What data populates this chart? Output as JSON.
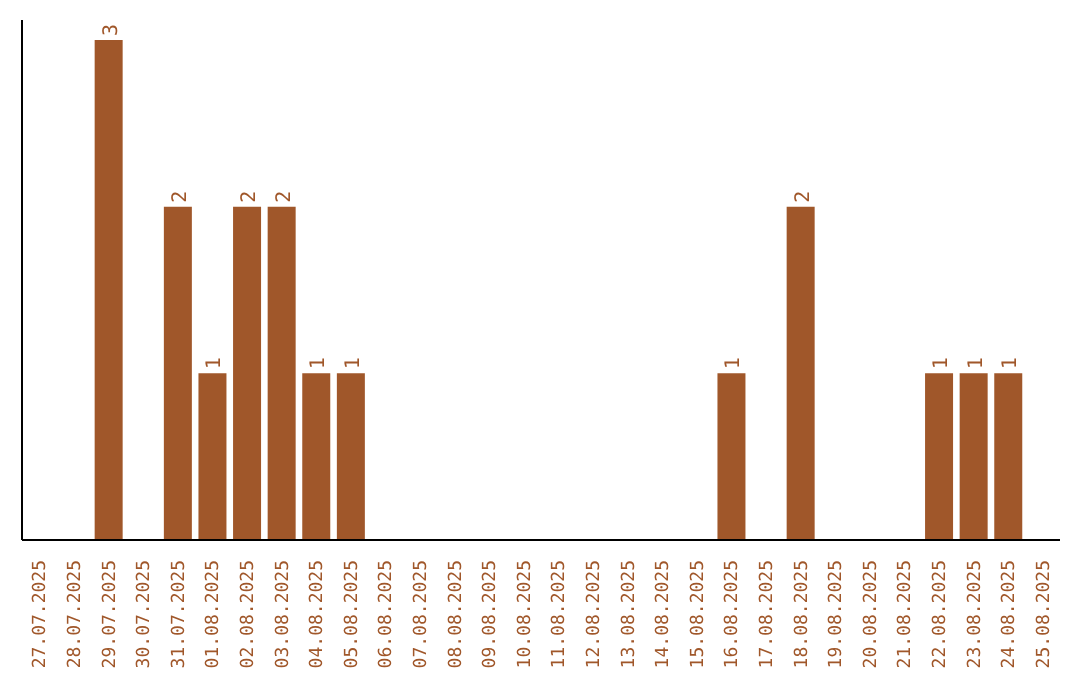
{
  "chart_data": {
    "type": "bar",
    "categories": [
      "27.07.2025",
      "28.07.2025",
      "29.07.2025",
      "30.07.2025",
      "31.07.2025",
      "01.08.2025",
      "02.08.2025",
      "03.08.2025",
      "04.08.2025",
      "05.08.2025",
      "06.08.2025",
      "07.08.2025",
      "08.08.2025",
      "09.08.2025",
      "10.08.2025",
      "11.08.2025",
      "12.08.2025",
      "13.08.2025",
      "14.08.2025",
      "15.08.2025",
      "16.08.2025",
      "17.08.2025",
      "18.08.2025",
      "19.08.2025",
      "20.08.2025",
      "21.08.2025",
      "22.08.2025",
      "23.08.2025",
      "24.08.2025",
      "25.08.2025"
    ],
    "values": [
      null,
      null,
      3,
      null,
      2,
      1,
      2,
      2,
      1,
      1,
      null,
      null,
      null,
      null,
      null,
      null,
      null,
      null,
      null,
      null,
      1,
      null,
      2,
      null,
      null,
      null,
      1,
      1,
      1,
      null
    ],
    "color": "#a0572a",
    "data_labels": true,
    "tick_labels": "x",
    "grid": false,
    "legend": false
  }
}
